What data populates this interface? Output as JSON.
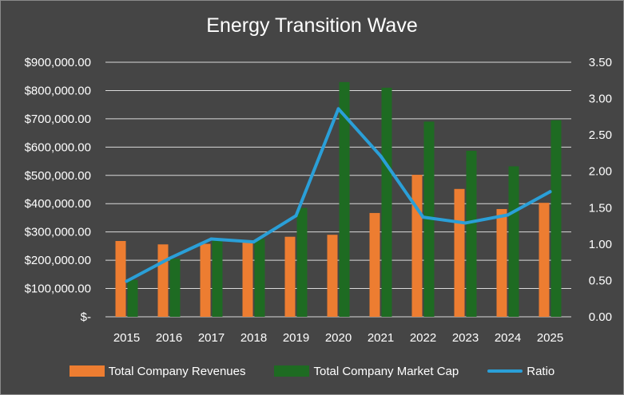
{
  "chart_data": {
    "type": "bar",
    "title": "Energy Transition Wave",
    "categories": [
      "2015",
      "2016",
      "2017",
      "2018",
      "2019",
      "2020",
      "2021",
      "2022",
      "2023",
      "2024",
      "2025"
    ],
    "series": [
      {
        "name": "Total Company Revenues",
        "type": "bar",
        "axis": "left",
        "color": "#ed7d31",
        "values": [
          268000,
          256000,
          258000,
          268000,
          283000,
          290000,
          367000,
          502000,
          452000,
          381000,
          403000
        ]
      },
      {
        "name": "Total Company Market Cap",
        "type": "bar",
        "axis": "left",
        "color": "#1e6b22",
        "values": [
          130000,
          205000,
          275000,
          275000,
          385000,
          830000,
          810000,
          690000,
          587000,
          532000,
          695000
        ]
      },
      {
        "name": "Ratio",
        "type": "line",
        "axis": "right",
        "color": "#2a9fd8",
        "values": [
          0.49,
          0.8,
          1.07,
          1.03,
          1.39,
          2.86,
          2.21,
          1.37,
          1.29,
          1.4,
          1.72
        ]
      }
    ],
    "y_left": {
      "min": 0,
      "max": 900000,
      "ticks": [
        {
          "value": 0,
          "label": "$-"
        },
        {
          "value": 100000,
          "label": "$100,000.00"
        },
        {
          "value": 200000,
          "label": "$200,000.00"
        },
        {
          "value": 300000,
          "label": "$300,000.00"
        },
        {
          "value": 400000,
          "label": "$400,000.00"
        },
        {
          "value": 500000,
          "label": "$500,000.00"
        },
        {
          "value": 600000,
          "label": "$600,000.00"
        },
        {
          "value": 700000,
          "label": "$700,000.00"
        },
        {
          "value": 800000,
          "label": "$800,000.00"
        },
        {
          "value": 900000,
          "label": "$900,000.00"
        }
      ]
    },
    "y_right": {
      "min": 0,
      "max": 3.5,
      "ticks": [
        {
          "value": 0,
          "label": "0.00"
        },
        {
          "value": 0.5,
          "label": "0.50"
        },
        {
          "value": 1,
          "label": "1.00"
        },
        {
          "value": 1.5,
          "label": "1.50"
        },
        {
          "value": 2,
          "label": "2.00"
        },
        {
          "value": 2.5,
          "label": "2.50"
        },
        {
          "value": 3,
          "label": "3.00"
        },
        {
          "value": 3.5,
          "label": "3.50"
        }
      ]
    },
    "grid": true,
    "legend_position": "bottom",
    "background": "#454545",
    "grid_color": "#d9d9d9",
    "text_color": "#ffffff"
  }
}
